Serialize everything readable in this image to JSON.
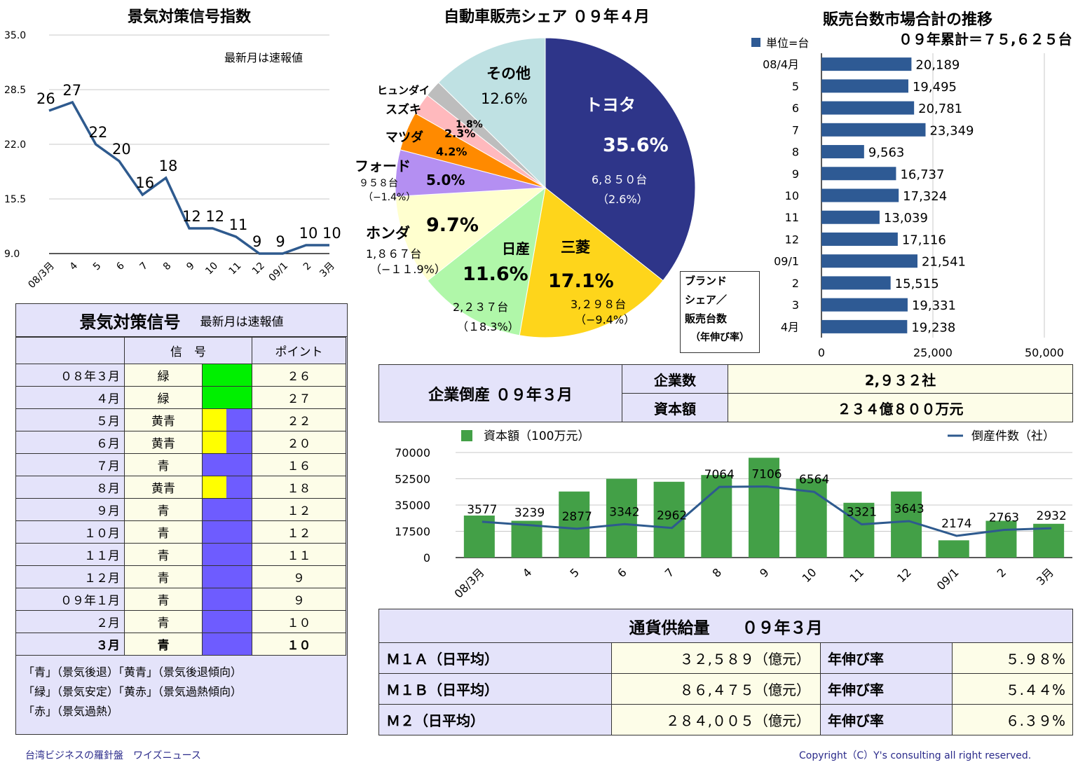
{
  "index_chart": {
    "title": "景気対策信号指数",
    "note": "最新月は速報値",
    "y_ticks": [
      "35.0",
      "28.5",
      "22.0",
      "15.5",
      "9.0"
    ],
    "ylim": [
      9,
      35
    ],
    "chart_data": {
      "type": "line",
      "categories": [
        "08/3月",
        "4",
        "5",
        "6",
        "7",
        "8",
        "9",
        "10",
        "11",
        "12",
        "09/1",
        "2",
        "3月"
      ],
      "values": [
        26,
        27,
        22,
        20,
        16,
        18,
        12,
        12,
        11,
        9,
        9,
        10,
        10
      ],
      "ylim": [
        9,
        35
      ],
      "color": "#2e5a8e"
    }
  },
  "signal_table": {
    "title": "景気対策信号",
    "note": "最新月は速報値",
    "col_signal": "信　号",
    "col_point": "ポイント",
    "rows": [
      {
        "month": "０８年３月",
        "signal": "緑",
        "point": "２６",
        "colors": [
          "#00f000"
        ]
      },
      {
        "month": "４月",
        "signal": "緑",
        "point": "２７",
        "colors": [
          "#00f000"
        ]
      },
      {
        "month": "５月",
        "signal": "黄青",
        "point": "２２",
        "colors": [
          "#ffff00",
          "#6e5cff"
        ]
      },
      {
        "month": "６月",
        "signal": "黄青",
        "point": "２０",
        "colors": [
          "#ffff00",
          "#6e5cff"
        ]
      },
      {
        "month": "７月",
        "signal": "青",
        "point": "１６",
        "colors": [
          "#6e5cff"
        ]
      },
      {
        "month": "８月",
        "signal": "黄青",
        "point": "１８",
        "colors": [
          "#ffff00",
          "#6e5cff"
        ]
      },
      {
        "month": "９月",
        "signal": "青",
        "point": "１２",
        "colors": [
          "#6e5cff"
        ]
      },
      {
        "month": "１０月",
        "signal": "青",
        "point": "１２",
        "colors": [
          "#6e5cff"
        ]
      },
      {
        "month": "１１月",
        "signal": "青",
        "point": "１１",
        "colors": [
          "#6e5cff"
        ]
      },
      {
        "month": "１２月",
        "signal": "青",
        "point": "９",
        "colors": [
          "#6e5cff"
        ]
      },
      {
        "month": "０９年１月",
        "signal": "青",
        "point": "９",
        "colors": [
          "#6e5cff"
        ]
      },
      {
        "month": "２月",
        "signal": "青",
        "point": "１０",
        "colors": [
          "#6e5cff"
        ]
      },
      {
        "month": "３月",
        "signal": "青",
        "point": "１０",
        "colors": [
          "#6e5cff"
        ]
      }
    ],
    "legend": [
      "「青」（景気後退）「黄青」（景気後退傾向）",
      "「緑」（景気安定）「黄赤」（景気過熱傾向）",
      "「赤」（景気過熱）"
    ]
  },
  "pie_chart": {
    "title": "自動車販売シェア ０９年４月",
    "legend_box": [
      "ブランド",
      "シェア／",
      "販売台数",
      "（年伸び率）"
    ],
    "chart_data": {
      "type": "pie",
      "slices": [
        {
          "brand": "トヨタ",
          "share": 35.6,
          "label": "35.6%",
          "units": "6,８５０台",
          "growth": "（2.6%）",
          "color": "#2e3589"
        },
        {
          "brand": "三菱",
          "share": 17.1,
          "label": "17.1%",
          "units": "3,２９８台",
          "growth": "（−9.4%）",
          "color": "#fed51b"
        },
        {
          "brand": "日産",
          "share": 11.6,
          "label": "11.6%",
          "units": "2,２３７台",
          "growth": "（１8.3%）",
          "color": "#b0f7a9"
        },
        {
          "brand": "ホンダ",
          "share": 9.7,
          "label": "9.7%",
          "units": "1,８６７台",
          "growth": "（−１１.9%）",
          "color": "#ffffcf"
        },
        {
          "brand": "フォード",
          "share": 5.0,
          "label": "5.0%",
          "units": "９５８台",
          "growth": "（−1.4%）",
          "color": "#b48ff2"
        },
        {
          "brand": "マツダ",
          "share": 4.2,
          "label": "4.2%",
          "units": "",
          "growth": "",
          "color": "#ff8a00"
        },
        {
          "brand": "スズキ",
          "share": 2.3,
          "label": "2.3%",
          "units": "",
          "growth": "",
          "color": "#ffb9bd"
        },
        {
          "brand": "ヒュンダイ",
          "share": 1.8,
          "label": "1.8%",
          "units": "",
          "growth": "",
          "color": "#bdbdbd"
        },
        {
          "brand": "その他",
          "share": 12.6,
          "label": "12.6%",
          "units": "",
          "growth": "",
          "color": "#bfe1e3"
        }
      ]
    }
  },
  "sales_chart": {
    "title": "販売台数市場合計の推移",
    "legend": "単位=台",
    "total": "０９年累計＝７５,６２５台",
    "x_ticks": [
      "0",
      "25,000",
      "50,000"
    ],
    "chart_data": {
      "type": "bar",
      "orientation": "horizontal",
      "categories": [
        "08/4月",
        "5",
        "6",
        "7",
        "8",
        "9",
        "10",
        "11",
        "12",
        "09/1",
        "2",
        "3",
        "4月"
      ],
      "values": [
        20189,
        19495,
        20781,
        23349,
        9563,
        16737,
        17324,
        13039,
        17116,
        21541,
        15515,
        19331,
        19238
      ],
      "value_labels": [
        "20,189",
        "19,495",
        "20,781",
        "23,349",
        "9,563",
        "16,737",
        "17,324",
        "13,039",
        "17,116",
        "21,541",
        "15,515",
        "19,331",
        "19,238"
      ],
      "xlim": [
        0,
        50000
      ],
      "color": "#2e5a94"
    }
  },
  "bankruptcy": {
    "title": "企業倒産 ０９年３月",
    "count_label": "企業数",
    "count_value": "2,９３２社",
    "capital_label": "資本額",
    "capital_value": "２３４億８００万元"
  },
  "bankruptcy_chart": {
    "bar_legend": "資本額（100万元）",
    "line_legend": "倒産件数（社）",
    "y_ticks": [
      "70000",
      "52500",
      "35000",
      "17500",
      "0"
    ],
    "chart_data": {
      "type": "bar",
      "categories": [
        "08/3月",
        "4",
        "5",
        "6",
        "7",
        "8",
        "9",
        "10",
        "11",
        "12",
        "09/1",
        "2",
        "3月"
      ],
      "series": [
        {
          "name": "資本額（100万元）",
          "type": "bar",
          "values": [
            28000,
            24500,
            44000,
            52500,
            50500,
            55000,
            66500,
            52500,
            36500,
            44000,
            11500,
            24500,
            22500
          ],
          "color": "#43a047"
        },
        {
          "name": "倒産件数（社）",
          "type": "line",
          "values": [
            3577,
            3239,
            2877,
            3342,
            2962,
            7064,
            7106,
            6564,
            3321,
            3643,
            2174,
            2763,
            2932
          ],
          "labels": [
            "3577",
            "3239",
            "2877",
            "3342",
            "2962",
            "7064",
            "7106",
            "6564",
            "3321",
            "3643",
            "2174",
            "2763",
            "2932"
          ],
          "color": "#2e5a8e"
        }
      ],
      "bar_ylim": [
        0,
        70000
      ],
      "line_ylim": [
        0,
        10500
      ]
    }
  },
  "money_supply": {
    "title": "通貨供給量　　０９年３月",
    "growth_label": "年伸び率",
    "rows": [
      {
        "name": "Ｍ１Ａ（日平均）",
        "value": "３２,５８９（億元）",
        "growth": "５.９８%"
      },
      {
        "name": "Ｍ１Ｂ（日平均）",
        "value": "８６,４７５（億元）",
        "growth": "５.４４%"
      },
      {
        "name": "Ｍ２（日平均）",
        "value": "２８４,００５（億元）",
        "growth": "６.３９%"
      }
    ]
  },
  "footer": {
    "left": "台湾ビジネスの羅針盤　ワイズニュース",
    "right": "Copyright（C）Y's consulting all right reserved."
  }
}
